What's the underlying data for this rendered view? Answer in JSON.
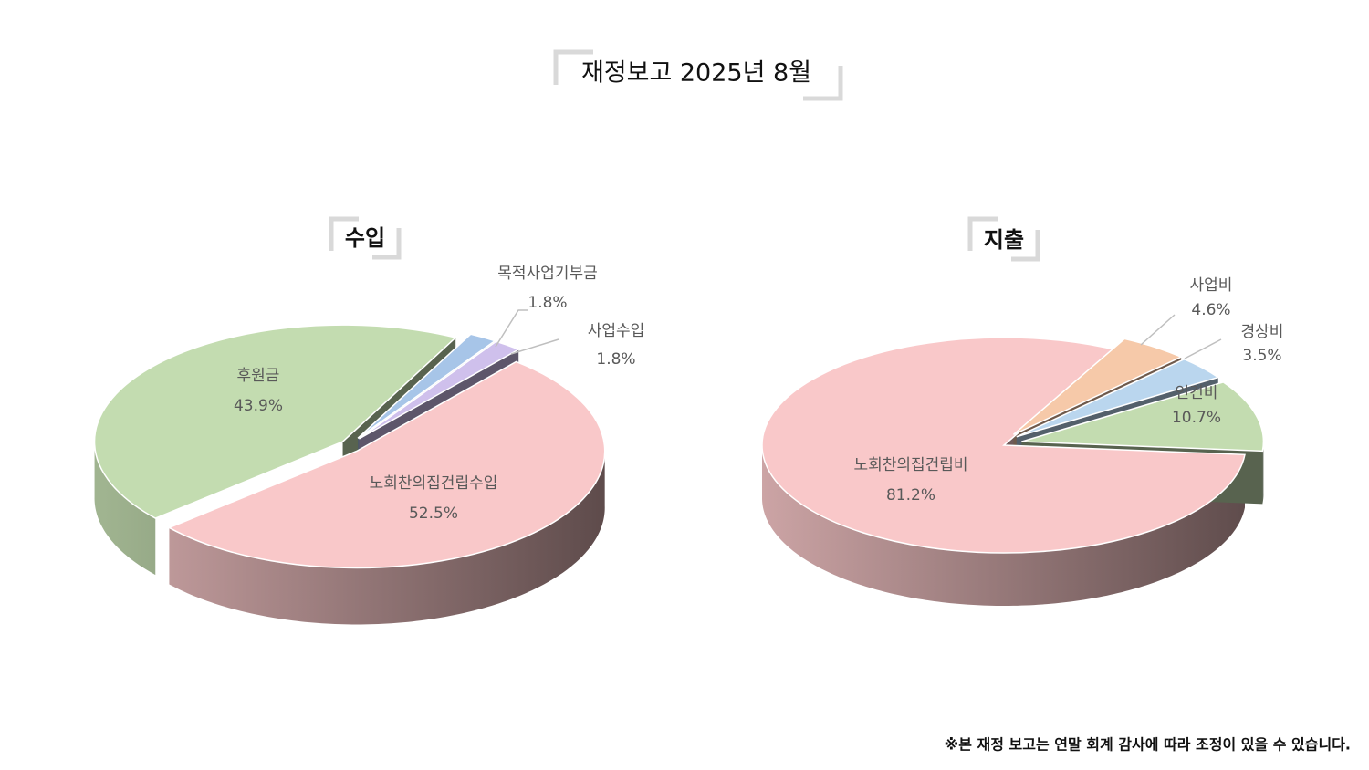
{
  "title": "재정보고 2025년 8월",
  "footnote": "※본 재정 보고는 연말 회계 감사에 따라 조정이 있을 수 있습니다.",
  "chart_data": [
    {
      "type": "pie",
      "title": "수입",
      "categories": [
        "노회찬의집건립수입",
        "후원금",
        "목적사업기부금",
        "사업수입"
      ],
      "values": [
        52.5,
        43.9,
        1.8,
        1.8
      ],
      "value_labels": [
        "52.5%",
        "43.9%",
        "1.8%",
        "1.8%"
      ],
      "colors": [
        "#f9c8c9",
        "#c3dcb0",
        "#a7c5e8",
        "#cfc0ec"
      ]
    },
    {
      "type": "pie",
      "title": "지출",
      "categories": [
        "노회찬의집건립비",
        "사업비",
        "경상비",
        "인건비"
      ],
      "values": [
        81.2,
        4.6,
        3.5,
        10.7
      ],
      "value_labels": [
        "81.2%",
        "4.6%",
        "3.5%",
        "10.7%"
      ],
      "colors": [
        "#f9c8c9",
        "#f6c9a9",
        "#bad6ee",
        "#c3dcb0"
      ]
    }
  ]
}
